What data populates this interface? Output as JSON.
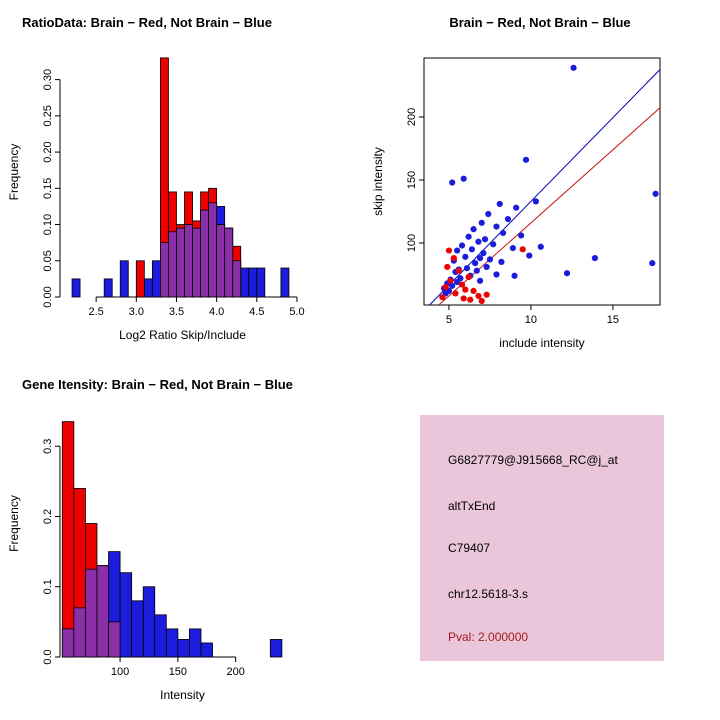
{
  "window": {
    "background": "#ffffff"
  },
  "colors": {
    "red": "#ee0000",
    "blue": "#1c1cdc",
    "purple": "#8b2fa8",
    "line_blue": "#0000bb",
    "line_red": "#cc1111",
    "box_pink": "#e9c6d9",
    "pval_red": "#a51c1c",
    "axis": "#000000"
  },
  "chart_data": [
    {
      "id": "ratio_hist",
      "type": "bar",
      "title": "RatioData: Brain − Red, Not Brain − Blue",
      "xlabel": "Log2 Ratio Skip/Include",
      "ylabel": "Frequency",
      "xlim": [
        2.05,
        5.1
      ],
      "ylim": [
        0,
        0.345
      ],
      "grid": false,
      "xticks": [
        2.5,
        3.0,
        3.5,
        4.0,
        4.5,
        5.0
      ],
      "xtick_labels": [
        "2.5",
        "3.0",
        "3.5",
        "4.0",
        "4.5",
        "5.0"
      ],
      "yticks": [
        0,
        0.05,
        0.1,
        0.15,
        0.2,
        0.25,
        0.3
      ],
      "ytick_labels": [
        "0.00",
        "0.05",
        "0.10",
        "0.15",
        "0.20",
        "0.25",
        "0.30"
      ],
      "bin_width": 0.1,
      "overlap_color_key": "purple",
      "series": [
        {
          "name": "not_brain_blue",
          "color_key": "blue",
          "bins": [
            [
              2.2,
              0.025
            ],
            [
              2.6,
              0.025
            ],
            [
              2.8,
              0.05
            ],
            [
              3.1,
              0.025
            ],
            [
              3.2,
              0.05
            ],
            [
              3.3,
              0.075
            ],
            [
              3.4,
              0.09
            ],
            [
              3.5,
              0.095
            ],
            [
              3.6,
              0.1
            ],
            [
              3.7,
              0.095
            ],
            [
              3.8,
              0.12
            ],
            [
              3.9,
              0.13
            ],
            [
              4.0,
              0.125
            ],
            [
              4.1,
              0.095
            ],
            [
              4.2,
              0.05
            ],
            [
              4.3,
              0.04
            ],
            [
              4.4,
              0.04
            ],
            [
              4.5,
              0.04
            ],
            [
              4.8,
              0.04
            ]
          ]
        },
        {
          "name": "brain_red",
          "color_key": "red",
          "bins": [
            [
              3.0,
              0.05
            ],
            [
              3.3,
              0.33
            ],
            [
              3.4,
              0.145
            ],
            [
              3.5,
              0.1
            ],
            [
              3.6,
              0.145
            ],
            [
              3.7,
              0.105
            ],
            [
              3.8,
              0.145
            ],
            [
              3.9,
              0.15
            ],
            [
              4.0,
              0.1
            ],
            [
              4.1,
              0.095
            ],
            [
              4.2,
              0.07
            ]
          ]
        }
      ]
    },
    {
      "id": "scatter",
      "type": "scatter",
      "title": "Brain − Red, Not Brain − Blue",
      "xlabel": "include intensity",
      "ylabel": "skip intensity",
      "xlim": [
        3.48,
        17.87
      ],
      "ylim": [
        50.8,
        246.8
      ],
      "grid": false,
      "xticks": [
        5,
        10,
        15
      ],
      "xtick_labels": [
        "5",
        "10",
        "15"
      ],
      "yticks": [
        100,
        150,
        200
      ],
      "ytick_labels": [
        "100",
        "150",
        "200"
      ],
      "lines": [
        {
          "name": "not_brain_fit",
          "color_key": "line_blue",
          "slope": 13.3
        },
        {
          "name": "brain_fit",
          "color_key": "line_red",
          "slope": 11.6
        }
      ],
      "series": [
        {
          "name": "not_brain_blue",
          "color_key": "blue",
          "points": [
            [
              12.6,
              239
            ],
            [
              9.7,
              166
            ],
            [
              5.9,
              151
            ],
            [
              5.2,
              148
            ],
            [
              17.6,
              139
            ],
            [
              13.9,
              88
            ],
            [
              17.4,
              84
            ],
            [
              10.3,
              133
            ],
            [
              8.1,
              131
            ],
            [
              9.1,
              128
            ],
            [
              7.4,
              123
            ],
            [
              8.6,
              119
            ],
            [
              7.0,
              116
            ],
            [
              7.9,
              113
            ],
            [
              6.5,
              111
            ],
            [
              8.3,
              108
            ],
            [
              9.4,
              106
            ],
            [
              6.2,
              105
            ],
            [
              7.2,
              103
            ],
            [
              6.8,
              101
            ],
            [
              7.7,
              99
            ],
            [
              5.8,
              98
            ],
            [
              8.9,
              96
            ],
            [
              6.4,
              95
            ],
            [
              5.5,
              94
            ],
            [
              7.1,
              92
            ],
            [
              9.9,
              90
            ],
            [
              6.0,
              89
            ],
            [
              6.9,
              88
            ],
            [
              7.5,
              87
            ],
            [
              5.3,
              86
            ],
            [
              8.2,
              85
            ],
            [
              6.6,
              84
            ],
            [
              7.3,
              81
            ],
            [
              6.1,
              80
            ],
            [
              5.6,
              79
            ],
            [
              6.7,
              78
            ],
            [
              5.4,
              77
            ],
            [
              7.9,
              75
            ],
            [
              12.2,
              76
            ],
            [
              6.3,
              74
            ],
            [
              5.7,
              72
            ],
            [
              5.1,
              71
            ],
            [
              6.9,
              70
            ],
            [
              5.5,
              69
            ],
            [
              4.9,
              68
            ],
            [
              5.2,
              66
            ],
            [
              4.7,
              64
            ],
            [
              5.0,
              62
            ],
            [
              4.8,
              60
            ],
            [
              9.0,
              74
            ],
            [
              10.6,
              97
            ]
          ]
        },
        {
          "name": "brain_red",
          "color_key": "red",
          "points": [
            [
              9.5,
              95
            ],
            [
              5.0,
              94
            ],
            [
              5.3,
              88
            ],
            [
              4.9,
              81
            ],
            [
              5.6,
              78
            ],
            [
              6.2,
              73
            ],
            [
              5.1,
              70
            ],
            [
              5.8,
              67
            ],
            [
              4.8,
              65
            ],
            [
              6.0,
              63
            ],
            [
              6.5,
              62
            ],
            [
              5.4,
              60
            ],
            [
              6.8,
              58
            ],
            [
              5.9,
              56
            ],
            [
              6.3,
              55
            ],
            [
              7.3,
              59
            ],
            [
              7.0,
              54
            ],
            [
              4.6,
              57
            ]
          ]
        }
      ]
    },
    {
      "id": "gene_hist",
      "type": "bar",
      "title": "Gene Itensity: Brain − Red, Not Brain − Blue",
      "xlabel": "Intensity",
      "ylabel": "Frequency",
      "xlim": [
        48,
        260
      ],
      "ylim": [
        0,
        0.38
      ],
      "grid": false,
      "xticks": [
        100,
        150,
        200
      ],
      "xtick_labels": [
        "100",
        "150",
        "200"
      ],
      "yticks": [
        0,
        0.1,
        0.2,
        0.3
      ],
      "ytick_labels": [
        "0.0",
        "0.1",
        "0.2",
        "0.3"
      ],
      "bin_width": 10,
      "overlap_color_key": "purple",
      "series": [
        {
          "name": "not_brain_blue",
          "color_key": "blue",
          "bins": [
            [
              50,
              0.04
            ],
            [
              60,
              0.07
            ],
            [
              70,
              0.125
            ],
            [
              80,
              0.13
            ],
            [
              90,
              0.15
            ],
            [
              100,
              0.12
            ],
            [
              110,
              0.08
            ],
            [
              120,
              0.1
            ],
            [
              130,
              0.06
            ],
            [
              140,
              0.04
            ],
            [
              150,
              0.025
            ],
            [
              160,
              0.04
            ],
            [
              170,
              0.02
            ],
            [
              230,
              0.025
            ]
          ]
        },
        {
          "name": "brain_red",
          "color_key": "red",
          "bins": [
            [
              50,
              0.335
            ],
            [
              60,
              0.24
            ],
            [
              70,
              0.19
            ],
            [
              80,
              0.13
            ],
            [
              90,
              0.05
            ]
          ]
        }
      ]
    }
  ],
  "info_panel": {
    "lines": [
      "G6827779@J915668_RC@j_at",
      "altTxEnd",
      "C79407",
      "chr12.5618-3.s"
    ],
    "pval": "Pval: 2.000000"
  }
}
